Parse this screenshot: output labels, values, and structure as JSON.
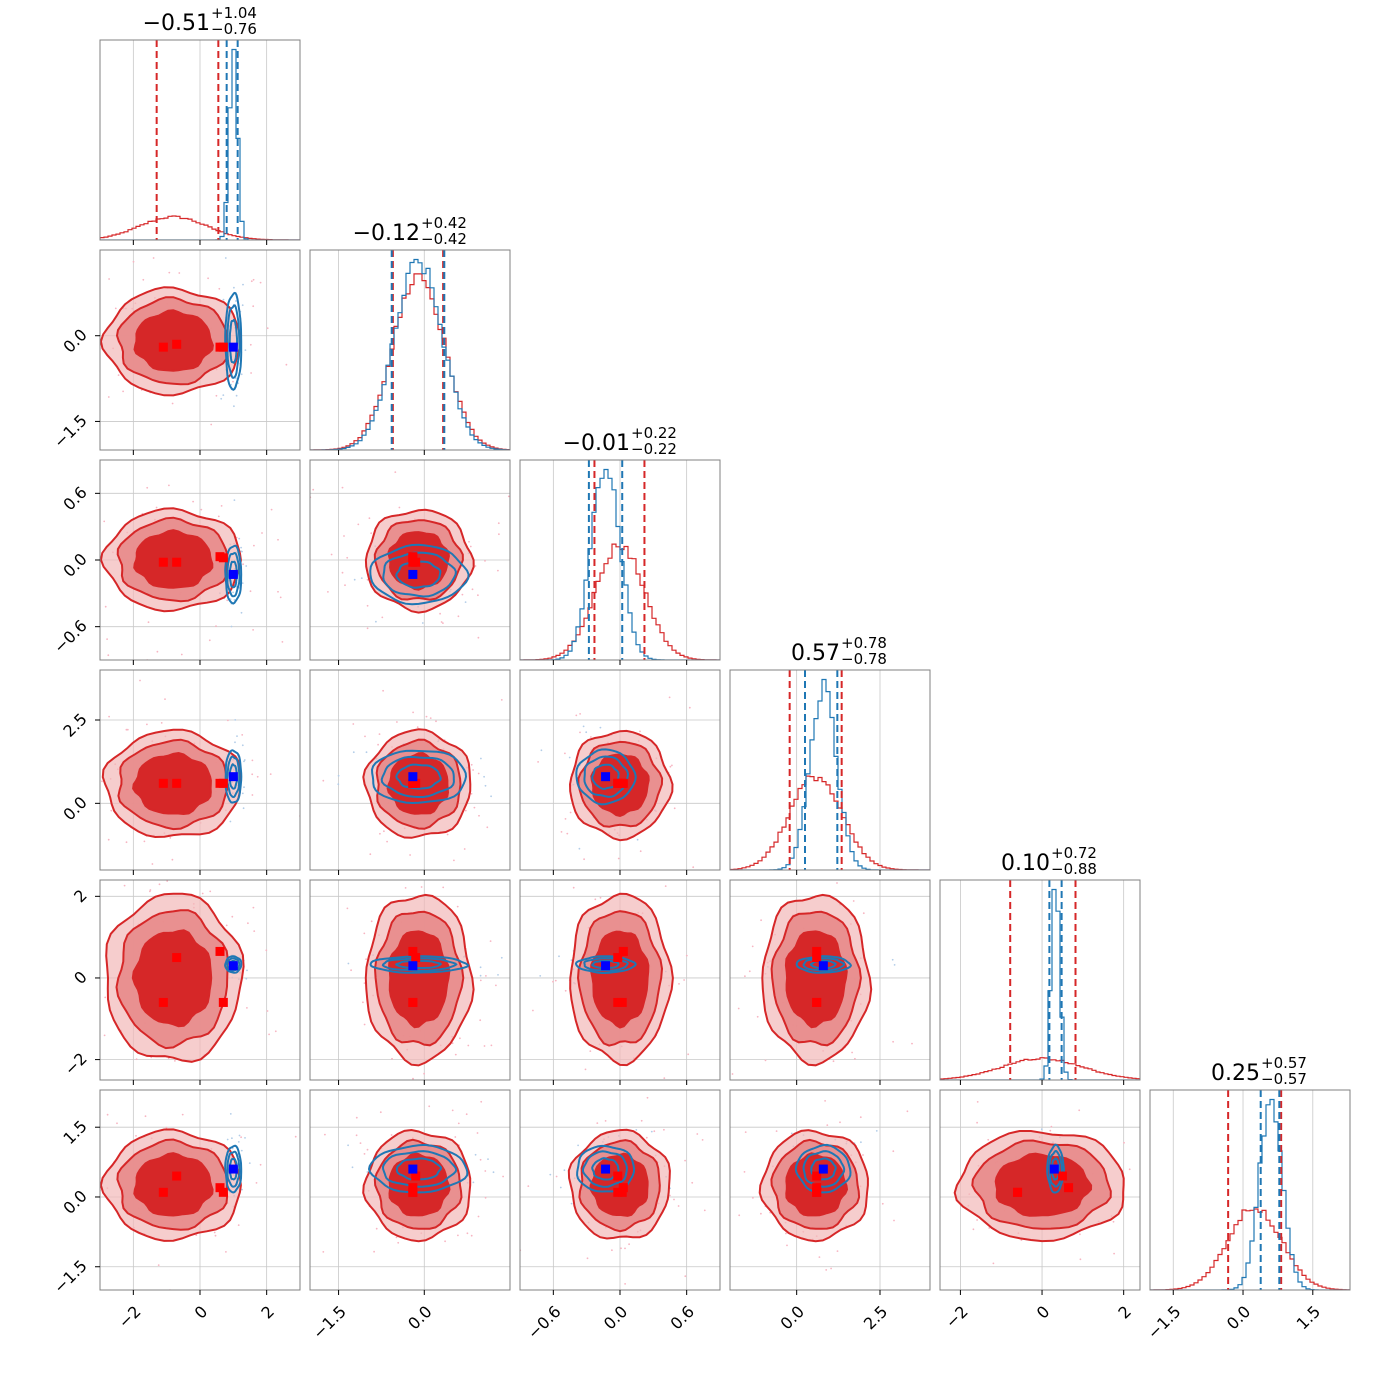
{
  "chart_data": {
    "type": "scatter",
    "subtype": "corner-plot",
    "n_params": 6,
    "colors": {
      "blue": "#1f77b4",
      "red": "#d62728",
      "red_fill_dark": "#d62728",
      "red_fill_light": "#f2b8b8",
      "marker_red": "#ff0000",
      "marker_blue": "#0000ff",
      "grid": "#c8c8c8",
      "frame": "#808080"
    },
    "grid": true,
    "params": [
      {
        "title_value": "−0.51",
        "title_up": "+1.04",
        "title_down": "−0.76",
        "range": [
          -3.0,
          3.0
        ],
        "ticks": [
          -2,
          0,
          2
        ],
        "tick_labels": [
          "−2",
          "0",
          "2"
        ],
        "red": {
          "mean": -0.8,
          "sd": 1.0,
          "q": [
            -1.3,
            0.55
          ]
        },
        "blue": {
          "mean": 1.0,
          "sd": 0.12,
          "q": [
            0.8,
            1.13
          ]
        },
        "markers_red": [
          -1.1,
          -0.7,
          0.6,
          0.7
        ],
        "marker_blue": 1.0
      },
      {
        "title_value": "−0.12",
        "title_up": "+0.42",
        "title_down": "−0.42",
        "range": [
          -2.0,
          1.5
        ],
        "ticks": [
          -1.5,
          0.0
        ],
        "tick_labels": [
          "−1.5",
          "0.0"
        ],
        "red": {
          "mean": -0.1,
          "sd": 0.45,
          "q": [
            -0.55,
            0.33
          ]
        },
        "blue": {
          "mean": -0.1,
          "sd": 0.42,
          "q": [
            -0.57,
            0.35
          ]
        },
        "markers_red": [
          -0.2,
          -0.15,
          -0.2,
          -0.2
        ],
        "marker_blue": -0.2
      },
      {
        "title_value": "−0.01",
        "title_up": "+0.22",
        "title_down": "−0.22",
        "range": [
          -0.9,
          0.9
        ],
        "ticks": [
          -0.6,
          0.0,
          0.6
        ],
        "tick_labels": [
          "−0.6",
          "0.0",
          "0.6"
        ],
        "red": {
          "mean": 0.0,
          "sd": 0.22,
          "q": [
            -0.23,
            0.22
          ]
        },
        "blue": {
          "mean": -0.13,
          "sd": 0.13,
          "q": [
            -0.28,
            0.02
          ]
        },
        "markers_red": [
          -0.02,
          -0.02,
          0.03,
          0.02
        ],
        "marker_blue": -0.13
      },
      {
        "title_value": "0.57",
        "title_up": "+0.78",
        "title_down": "−0.78",
        "range": [
          -2.0,
          4.0
        ],
        "ticks": [
          0.0,
          2.5
        ],
        "tick_labels": [
          "0.0",
          "2.5"
        ],
        "red": {
          "mean": 0.57,
          "sd": 0.78,
          "q": [
            -0.21,
            1.35
          ]
        },
        "blue": {
          "mean": 0.8,
          "sd": 0.4,
          "q": [
            0.25,
            1.22
          ]
        },
        "markers_red": [
          0.6,
          0.6,
          0.6,
          0.6
        ],
        "marker_blue": 0.8
      },
      {
        "title_value": "0.10",
        "title_up": "+0.72",
        "title_down": "−0.88",
        "range": [
          -2.5,
          2.4
        ],
        "ticks": [
          -2,
          0,
          2
        ],
        "tick_labels": [
          "−2",
          "0",
          "2"
        ],
        "red": {
          "mean": 0.0,
          "sd": 1.0,
          "q": [
            -0.78,
            0.82
          ]
        },
        "blue": {
          "mean": 0.33,
          "sd": 0.1,
          "q": [
            0.18,
            0.48
          ]
        },
        "markers_red": [
          -0.6,
          0.5,
          0.65,
          -0.6
        ],
        "marker_blue": 0.3
      },
      {
        "title_value": "0.25",
        "title_up": "+0.57",
        "title_down": "−0.57",
        "range": [
          -2.0,
          2.3
        ],
        "ticks": [
          -1.5,
          0.0,
          1.5
        ],
        "tick_labels": [
          "−1.5",
          "0.0",
          "1.5"
        ],
        "red": {
          "mean": 0.25,
          "sd": 0.57,
          "q": [
            -0.32,
            0.82
          ]
        },
        "blue": {
          "mean": 0.6,
          "sd": 0.25,
          "q": [
            0.38,
            0.78
          ]
        },
        "markers_red": [
          0.1,
          0.45,
          0.2,
          0.1
        ],
        "marker_blue": 0.6
      }
    ]
  }
}
